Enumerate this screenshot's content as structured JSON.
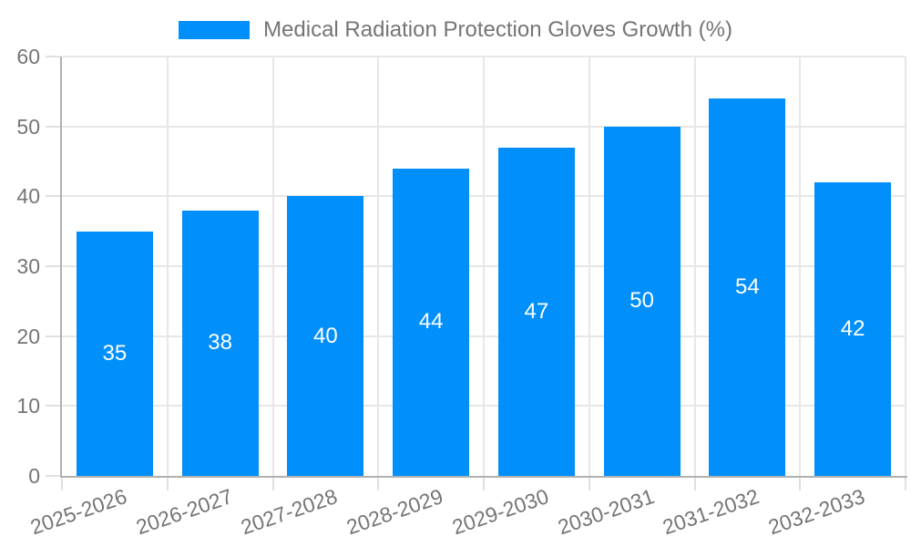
{
  "chart_data": {
    "type": "bar",
    "title": "Medical Radiation Protection Gloves Growth (%)",
    "categories": [
      "2025-2026",
      "2026-2027",
      "2027-2028",
      "2028-2029",
      "2029-2030",
      "2030-2031",
      "2031-2032",
      "2032-2033"
    ],
    "values": [
      35,
      38,
      40,
      44,
      47,
      50,
      54,
      42
    ],
    "bar_labels": [
      "35",
      "38",
      "40",
      "44",
      "47",
      "50",
      "54",
      "42"
    ],
    "ylim": [
      0,
      60
    ],
    "yticks": [
      0,
      10,
      20,
      30,
      40,
      50,
      60
    ],
    "grid": true,
    "legend_position": "top",
    "xlabel": "",
    "ylabel": "",
    "colors": {
      "bar": "#008FFB",
      "grid": "#e7e7e7",
      "tick": "#e0e0e0",
      "axis": "#b0b0b0",
      "label": "#757575",
      "bar_label": "#ffffff",
      "background": "#ffffff"
    }
  }
}
